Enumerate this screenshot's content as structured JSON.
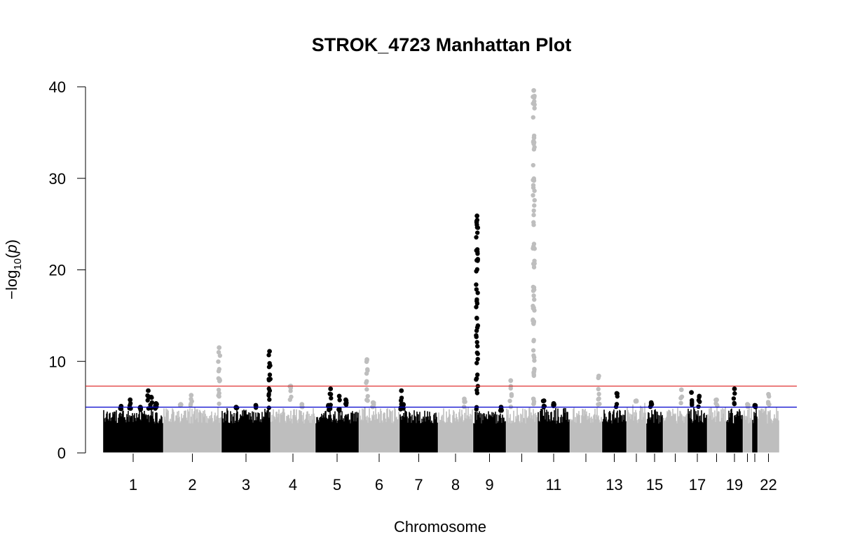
{
  "chart_data": {
    "type": "scatter",
    "title": "STROK_4723 Manhattan Plot",
    "xlabel": "Chromosome",
    "ylabel_parts": {
      "prefix": "−log",
      "sub": "10",
      "open": "(",
      "var": "p",
      "close": ")"
    },
    "ylim": [
      0,
      40
    ],
    "yticks": [
      0,
      10,
      20,
      30,
      40
    ],
    "grid": false,
    "colors": {
      "odd": "#000000",
      "even": "#bebebe",
      "suggestive_line": "#0000cd",
      "genomewide_line": "#dd2222"
    },
    "thresholds": {
      "genomewide": 7.3,
      "suggestive": 5.0
    },
    "chromosomes": [
      {
        "chr": "1",
        "tick_label": "1",
        "baseline_max": 4.7,
        "peaks": [
          [
            0.3,
            5.1
          ],
          [
            0.45,
            5.8
          ],
          [
            0.62,
            5.0
          ],
          [
            0.75,
            6.8
          ],
          [
            0.8,
            6.1
          ],
          [
            0.88,
            5.4
          ]
        ]
      },
      {
        "chr": "2",
        "tick_label": "2",
        "baseline_max": 5.0,
        "peaks": [
          [
            0.3,
            5.3
          ],
          [
            0.48,
            6.3
          ],
          [
            0.96,
            11.5
          ]
        ]
      },
      {
        "chr": "3",
        "tick_label": "3",
        "baseline_max": 4.9,
        "peaks": [
          [
            0.3,
            5.0
          ],
          [
            0.7,
            5.2
          ],
          [
            0.98,
            11.1
          ]
        ]
      },
      {
        "chr": "4",
        "tick_label": "4",
        "baseline_max": 4.9,
        "peaks": [
          [
            0.45,
            7.3
          ],
          [
            0.7,
            5.3
          ]
        ]
      },
      {
        "chr": "5",
        "tick_label": "5",
        "baseline_max": 4.6,
        "peaks": [
          [
            0.3,
            5.2
          ],
          [
            0.35,
            7.0
          ],
          [
            0.55,
            6.2
          ],
          [
            0.7,
            5.8
          ]
        ]
      },
      {
        "chr": "6",
        "tick_label": "6",
        "baseline_max": 5.0,
        "peaks": [
          [
            0.2,
            10.2
          ],
          [
            0.35,
            5.5
          ]
        ]
      },
      {
        "chr": "7",
        "tick_label": "7",
        "baseline_max": 4.7,
        "peaks": [
          [
            0.05,
            6.8
          ],
          [
            0.1,
            5.3
          ]
        ]
      },
      {
        "chr": "8",
        "tick_label": "8",
        "baseline_max": 5.0,
        "peaks": [
          [
            0.75,
            5.9
          ]
        ]
      },
      {
        "chr": "9",
        "tick_label": "9",
        "baseline_max": 4.6,
        "peaks": [
          [
            0.12,
            25.9
          ],
          [
            0.85,
            5.0
          ]
        ]
      },
      {
        "chr": "10",
        "tick_label": "",
        "baseline_max": 5.0,
        "peaks": [
          [
            0.15,
            7.9
          ],
          [
            0.88,
            39.6
          ]
        ]
      },
      {
        "chr": "11",
        "tick_label": "11",
        "baseline_max": 5.0,
        "peaks": [
          [
            0.2,
            5.7
          ],
          [
            0.5,
            5.4
          ]
        ]
      },
      {
        "chr": "12",
        "tick_label": "",
        "baseline_max": 5.0,
        "peaks": [
          [
            0.9,
            8.4
          ]
        ]
      },
      {
        "chr": "13",
        "tick_label": "13",
        "baseline_max": 4.8,
        "peaks": [
          [
            0.6,
            6.5
          ]
        ]
      },
      {
        "chr": "14",
        "tick_label": "",
        "baseline_max": 5.6,
        "peaks": [
          [
            0.5,
            5.7
          ]
        ]
      },
      {
        "chr": "15",
        "tick_label": "15",
        "baseline_max": 4.9,
        "peaks": [
          [
            0.3,
            5.5
          ]
        ]
      },
      {
        "chr": "16",
        "tick_label": "",
        "baseline_max": 5.0,
        "peaks": [
          [
            0.75,
            6.9
          ]
        ]
      },
      {
        "chr": "17",
        "tick_label": "17",
        "baseline_max": 5.0,
        "peaks": [
          [
            0.2,
            6.6
          ],
          [
            0.6,
            6.2
          ]
        ]
      },
      {
        "chr": "18",
        "tick_label": "",
        "baseline_max": 5.0,
        "peaks": [
          [
            0.5,
            5.8
          ]
        ]
      },
      {
        "chr": "19",
        "tick_label": "19",
        "baseline_max": 5.0,
        "peaks": [
          [
            0.5,
            7.0
          ]
        ]
      },
      {
        "chr": "20",
        "tick_label": "",
        "baseline_max": 5.0,
        "peaks": [
          [
            0.5,
            5.3
          ]
        ]
      },
      {
        "chr": "21",
        "tick_label": "",
        "baseline_max": 5.0,
        "peaks": [
          [
            0.5,
            5.2
          ]
        ]
      },
      {
        "chr": "22",
        "tick_label": "22",
        "baseline_max": 5.0,
        "peaks": [
          [
            0.5,
            6.4
          ]
        ]
      }
    ]
  }
}
